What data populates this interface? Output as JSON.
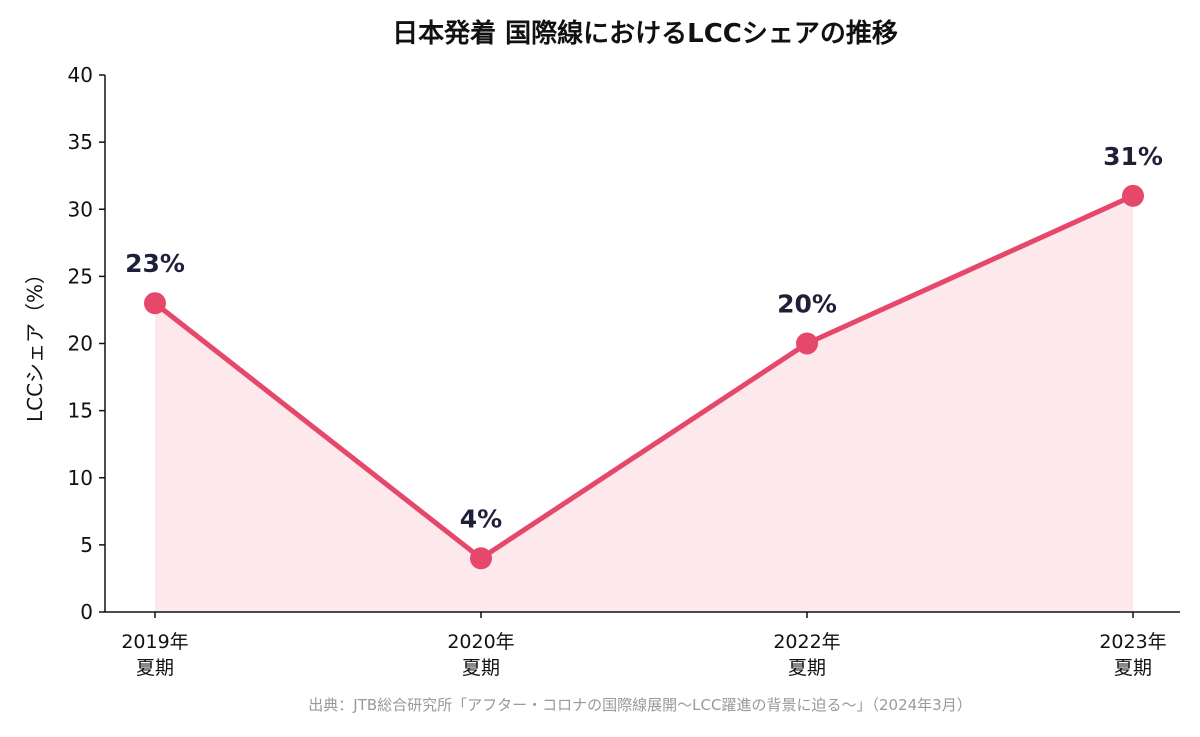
{
  "chart_data": {
    "type": "line",
    "title": "日本発着 国際線におけるLCCシェアの推移",
    "xlabel": "",
    "ylabel": "LCCシェア（%）",
    "categories": [
      [
        "2019年",
        "夏期"
      ],
      [
        "2020年",
        "夏期"
      ],
      [
        "2022年",
        "夏期"
      ],
      [
        "2023年",
        "夏期"
      ]
    ],
    "values": [
      23,
      4,
      20,
      31
    ],
    "data_labels": [
      "23%",
      "4%",
      "20%",
      "31%"
    ],
    "ylim": [
      0,
      40
    ],
    "yticks": [
      0,
      5,
      10,
      15,
      20,
      25,
      30,
      35,
      40
    ],
    "grid": false,
    "area_fill": true,
    "colors": {
      "line": "#e5486a",
      "fill": "#fde8eb",
      "label": "#1f1f3a",
      "source": "#999999"
    },
    "source": "出典：JTB総合研究所「アフター・コロナの国際線展開〜LCC躍進の背景に迫る〜」（2024年3月）"
  }
}
